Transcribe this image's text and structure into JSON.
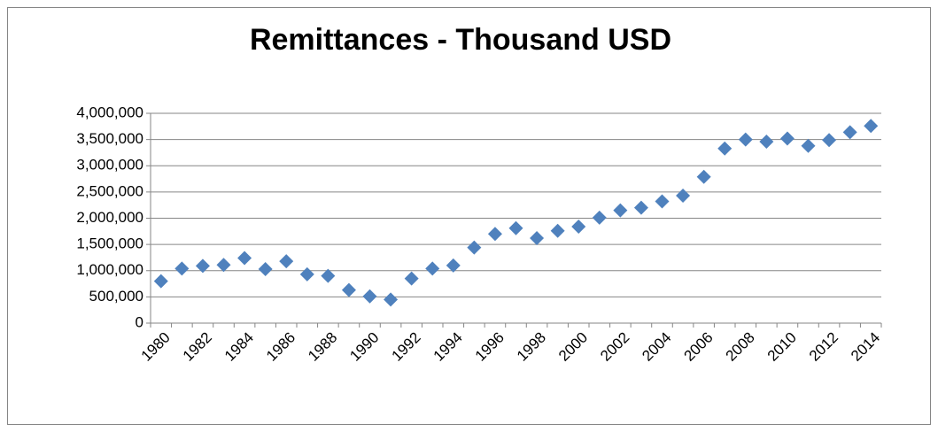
{
  "chart_data": {
    "type": "line",
    "title": "Remittances - Thousand USD",
    "categories": [
      "1980",
      null,
      "1982",
      null,
      "1984",
      null,
      "1986",
      null,
      "1988",
      null,
      "1990",
      null,
      "1992",
      null,
      "1994",
      null,
      "1996",
      null,
      "1998",
      null,
      "2000",
      null,
      "2002",
      null,
      "2004",
      null,
      "2006",
      null,
      "2008",
      null,
      "2010",
      null,
      "2012",
      null,
      "2014"
    ],
    "series": [
      {
        "name": "Remittances",
        "color": "#4f81bd",
        "values": [
          800000,
          1040000,
          1090000,
          1110000,
          1240000,
          1030000,
          1180000,
          930000,
          900000,
          630000,
          510000,
          450000,
          850000,
          1040000,
          1100000,
          1440000,
          1700000,
          1810000,
          1620000,
          1760000,
          1840000,
          2010000,
          2150000,
          2200000,
          2320000,
          2430000,
          2790000,
          3330000,
          3500000,
          3460000,
          3520000,
          3380000,
          3490000,
          3640000,
          3760000
        ]
      }
    ],
    "ylim": [
      0,
      4000000
    ],
    "yticks": [
      0,
      {
        "value": 500000,
        "label": "500,000"
      },
      {
        "value": 1000000,
        "label": "1,000,000"
      },
      {
        "value": 1500000,
        "label": "1,500,000"
      },
      {
        "value": 2000000,
        "label": "2,000,000"
      },
      {
        "value": 2500000,
        "label": "2,500,000"
      },
      {
        "value": 3000000,
        "label": "3,000,000"
      },
      {
        "value": 3500000,
        "label": "3,500,000"
      },
      {
        "value": 4000000,
        "label": "4,000,000"
      }
    ],
    "grid": true
  }
}
